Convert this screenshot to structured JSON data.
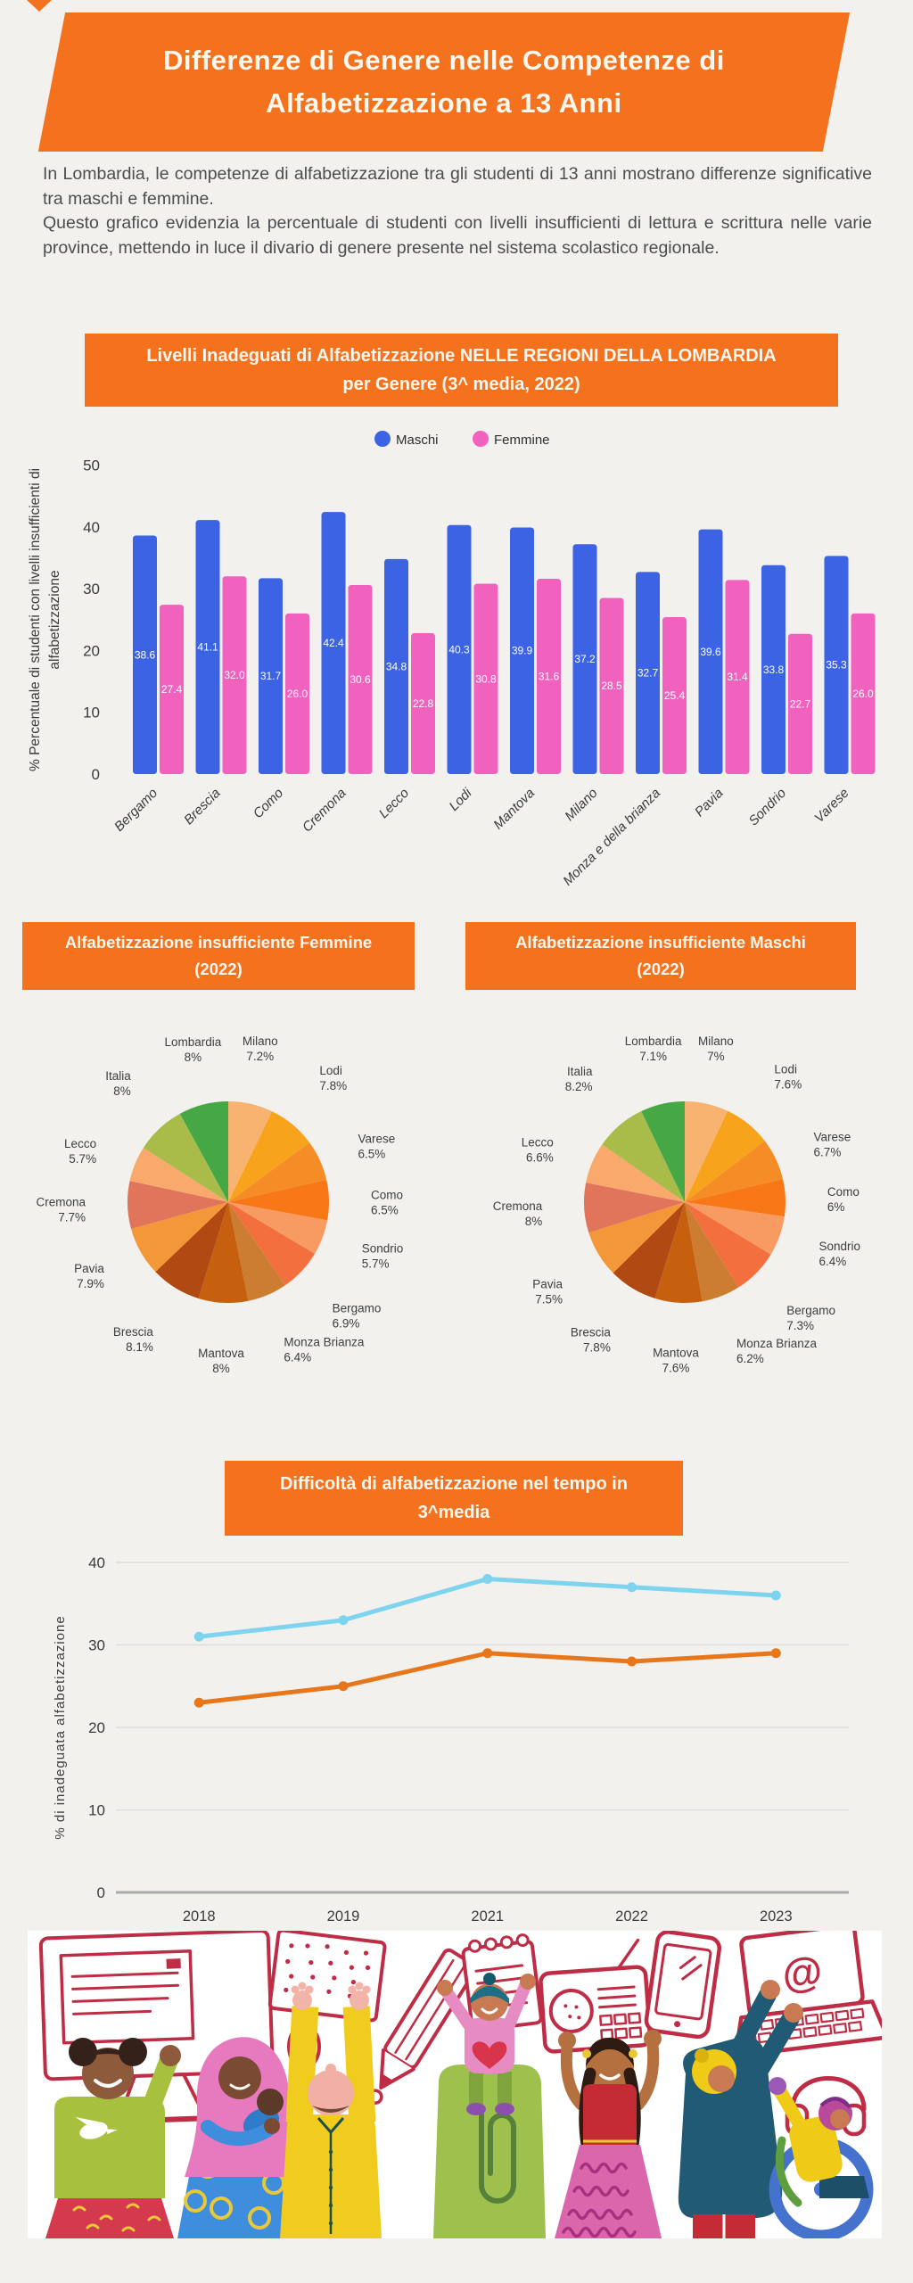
{
  "colors": {
    "accent_orange": "#F4711D",
    "background": "#F2F1EE",
    "maschi_blue": "#3B63E4",
    "femmine_pink": "#F162BE",
    "line_lightblue": "#7ED3EE",
    "line_orange": "#E8761A",
    "lineart_red": "#BE2D45"
  },
  "header": {
    "title": "Differenze di Genere nelle Competenze di\nAlfabetizzazione a 13 Anni"
  },
  "intro": {
    "text": "In Lombardia, le competenze di alfabetizzazione tra gli studenti di 13 anni mostrano differenze significative tra maschi e femmine.\n Questo grafico evidenzia la percentuale di studenti con livelli insufficienti di lettura e scrittura nelle varie province, mettendo in luce il divario di genere presente nel sistema scolastico regionale."
  },
  "chart_data": [
    {
      "type": "bar",
      "title": "Livelli Inadeguati di Alfabetizzazione NELLE REGIONI DELLA LOMBARDIA\nper Genere (3^ media, 2022)",
      "categories": [
        "Bergamo",
        "Brescia",
        "Como",
        "Cremona",
        "Lecco",
        "Lodi",
        "Mantova",
        "Milano",
        "Monza e della brianza",
        "Pavia",
        "Sondrio",
        "Varese"
      ],
      "series": [
        {
          "name": "Maschi",
          "color": "#3B63E4",
          "values": [
            38.6,
            41.1,
            31.7,
            42.4,
            34.8,
            40.3,
            39.9,
            37.2,
            32.7,
            39.6,
            33.8,
            35.3
          ]
        },
        {
          "name": "Femmine",
          "color": "#F162BE",
          "values": [
            27.4,
            32.0,
            26.0,
            30.6,
            22.8,
            30.8,
            31.6,
            28.5,
            25.4,
            31.4,
            22.7,
            26.0
          ]
        }
      ],
      "ylabel_lines": [
        "% Percentuale di studenti con livelli insufficienti di",
        "alfabetizzazione"
      ],
      "ylim": [
        0,
        50
      ],
      "yticks": [
        0,
        10,
        20,
        30,
        40,
        50
      ],
      "grid": false,
      "legend_position": "top",
      "value_labels": true
    },
    {
      "type": "pie",
      "title": "Alfabetizzazione insufficiente Femmine\n(2022)",
      "labels": [
        "Milano",
        "Lodi",
        "Varese",
        "Como",
        "Sondrio",
        "Bergamo",
        "Monza Brianza",
        "Mantova",
        "Brescia",
        "Pavia",
        "Cremona",
        "Lecco",
        "Italia",
        "Lombardia"
      ],
      "values": [
        7.2,
        7.8,
        6.5,
        6.5,
        5.7,
        6.9,
        6.4,
        8,
        8.1,
        7.9,
        7.7,
        5.7,
        8,
        8
      ],
      "pct_labels": [
        "7.2%",
        "7.8%",
        "6.5%",
        "6.5%",
        "5.7%",
        "6.9%",
        "6.4%",
        "8%",
        "8.1%",
        "7.9%",
        "7.7%",
        "5.7%",
        "8%",
        "8%"
      ],
      "colors": [
        "#F7B36F",
        "#F7A41C",
        "#F68C26",
        "#F87818",
        "#F89B63",
        "#F3703E",
        "#CD7D31",
        "#C6600F",
        "#B04A12",
        "#F49738",
        "#E0755B",
        "#F8A96B",
        "#A9BC4A",
        "#45A845"
      ]
    },
    {
      "type": "pie",
      "title": "Alfabetizzazione insufficiente Maschi\n(2022)",
      "labels": [
        "Milano",
        "Lodi",
        "Varese",
        "Como",
        "Sondrio",
        "Bergamo",
        "Monza Brianza",
        "Mantova",
        "Brescia",
        "Pavia",
        "Cremona",
        "Lecco",
        "Italia",
        "Lombardia"
      ],
      "values": [
        7,
        7.6,
        6.7,
        6,
        6.4,
        7.3,
        6.2,
        7.6,
        7.8,
        7.5,
        8,
        6.6,
        8.2,
        7.1
      ],
      "pct_labels": [
        "7%",
        "7.6%",
        "6.7%",
        "6%",
        "6.4%",
        "7.3%",
        "6.2%",
        "7.6%",
        "7.8%",
        "7.5%",
        "8%",
        "6.6%",
        "8.2%",
        "7.1%"
      ],
      "colors": [
        "#F7B36F",
        "#F7A41C",
        "#F68C26",
        "#F87818",
        "#F89B63",
        "#F3703E",
        "#CD7D31",
        "#C6600F",
        "#B04A12",
        "#F49738",
        "#E0755B",
        "#F8A96B",
        "#A9BC4A",
        "#45A845"
      ]
    },
    {
      "type": "line",
      "title": "Difficoltà di alfabetizzazione nel tempo in\n3^media",
      "x": [
        "2018",
        "2019",
        "2021",
        "2022",
        "2023"
      ],
      "series": [
        {
          "color": "#7ED3EE",
          "values": [
            31,
            33,
            38,
            37,
            36
          ]
        },
        {
          "color": "#E8761A",
          "values": [
            23,
            25,
            29,
            28,
            29
          ]
        }
      ],
      "ylabel": "% di inadeguata alfabetizzazione",
      "ylim": [
        0,
        40
      ],
      "yticks": [
        0,
        10,
        20,
        30,
        40
      ],
      "grid": true
    }
  ],
  "illustration": {
    "icons": [
      "desktop-computer-icon",
      "computer-mouse-icon",
      "braille-sheet-icon",
      "pencil-icon",
      "notepad-icon",
      "radio-icon",
      "smartphone-icon",
      "laptop-icon",
      "headphones-icon"
    ],
    "figures": [
      "girl-afro-puffs",
      "mother-hijab-baby",
      "person-reading-braille",
      "child-on-shoulders",
      "girl-braids",
      "person-laptop",
      "person-wheelchair"
    ]
  }
}
